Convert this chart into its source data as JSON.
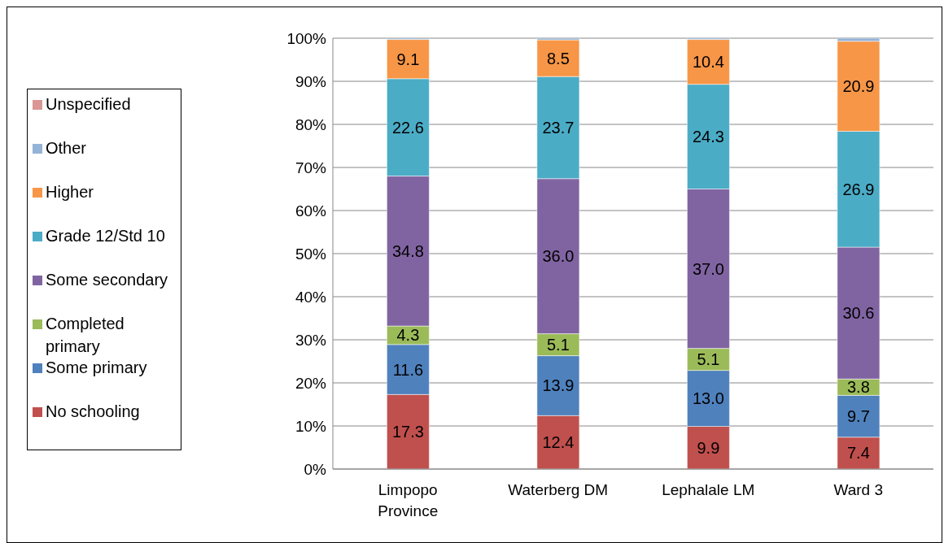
{
  "chart_data": {
    "type": "bar",
    "stacked": true,
    "categories": [
      "Limpopo Province",
      "Waterberg DM",
      "Lephalale LM",
      "Ward 3"
    ],
    "series": [
      {
        "name": "No schooling",
        "color": "#c0504d",
        "values": [
          17.3,
          12.4,
          9.9,
          7.4
        ],
        "value_labels": [
          "17.3",
          "12.4",
          "9.9",
          "7.4"
        ]
      },
      {
        "name": "Some primary",
        "color": "#4f81bd",
        "values": [
          11.6,
          13.9,
          13.0,
          9.7
        ],
        "value_labels": [
          "11.6",
          "13.9",
          "13.0",
          "9.7"
        ]
      },
      {
        "name": "Completed primary",
        "color": "#9bbb59",
        "values": [
          4.3,
          5.1,
          5.1,
          3.8
        ],
        "value_labels": [
          "4.3",
          "5.1",
          "5.1",
          "3.8"
        ]
      },
      {
        "name": "Some secondary",
        "color": "#8064a2",
        "values": [
          34.8,
          36.0,
          37.0,
          30.6
        ],
        "value_labels": [
          "34.8",
          "36.0",
          "37.0",
          "30.6"
        ]
      },
      {
        "name": "Grade 12/Std 10",
        "color": "#4bacc6",
        "values": [
          22.6,
          23.7,
          24.3,
          26.9
        ],
        "value_labels": [
          "22.6",
          "23.7",
          "24.3",
          "26.9"
        ]
      },
      {
        "name": "Higher",
        "color": "#f79646",
        "values": [
          9.1,
          8.5,
          10.4,
          20.9
        ],
        "value_labels": [
          "9.1",
          "8.5",
          "10.4",
          "20.9"
        ]
      },
      {
        "name": "Other",
        "color": "#95b3d7",
        "values": [
          0.3,
          0.4,
          0.3,
          0.7
        ]
      },
      {
        "name": "Unspecified",
        "color": "#d99694",
        "values": [
          null,
          null,
          null,
          null
        ]
      }
    ],
    "ylim": [
      0,
      100
    ],
    "yticks": [
      {
        "value": 0,
        "label": "0%"
      },
      {
        "value": 10,
        "label": "10%"
      },
      {
        "value": 20,
        "label": "20%"
      },
      {
        "value": 30,
        "label": "30%"
      },
      {
        "value": 40,
        "label": "40%"
      },
      {
        "value": 50,
        "label": "50%"
      },
      {
        "value": 60,
        "label": "60%"
      },
      {
        "value": 70,
        "label": "70%"
      },
      {
        "value": 80,
        "label": "80%"
      },
      {
        "value": 90,
        "label": "90%"
      },
      {
        "value": 100,
        "label": "100%"
      }
    ],
    "grid": "y",
    "legend": "left"
  }
}
